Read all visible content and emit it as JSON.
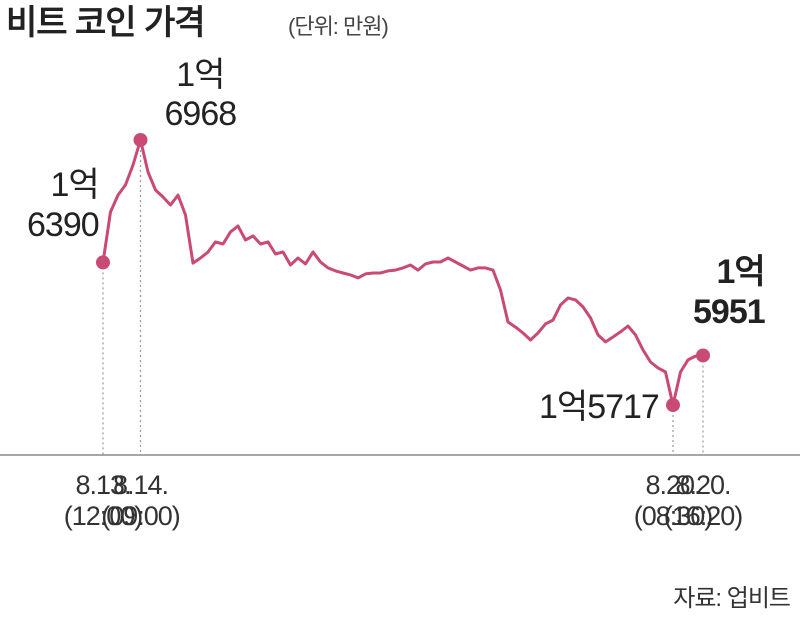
{
  "chart_data": {
    "type": "line",
    "title": "비트 코인 가격",
    "subtitle": "(단위: 만원)",
    "source": "자료: 업비트",
    "color": "#c94a73",
    "ylim": [
      15500,
      17100
    ],
    "categories": [
      "8.13.\n(12:00)",
      null,
      null,
      null,
      null,
      "8.14.\n(09:00)",
      null,
      null,
      null,
      null,
      null,
      null,
      null,
      null,
      null,
      null,
      null,
      null,
      null,
      null,
      null,
      null,
      null,
      null,
      null,
      null,
      null,
      null,
      null,
      null,
      null,
      null,
      null,
      null,
      null,
      null,
      null,
      null,
      null,
      null,
      null,
      null,
      null,
      null,
      null,
      null,
      null,
      null,
      null,
      null,
      null,
      null,
      null,
      null,
      null,
      null,
      null,
      null,
      null,
      null,
      null,
      null,
      null,
      null,
      null,
      null,
      null,
      null,
      null,
      null,
      null,
      null,
      null,
      null,
      null,
      null,
      "8.20.\n(08:30)",
      null,
      null,
      null,
      "8.20.\n(16:20)"
    ],
    "values": [
      16390,
      16628,
      16708,
      16756,
      16850,
      16968,
      16817,
      16732,
      16699,
      16661,
      16708,
      16614,
      16387,
      16411,
      16439,
      16487,
      16477,
      16534,
      16562,
      16496,
      16515,
      16477,
      16487,
      16430,
      16439,
      16378,
      16411,
      16383,
      16439,
      16392,
      16364,
      16350,
      16340,
      16331,
      16317,
      16336,
      16340,
      16340,
      16350,
      16354,
      16364,
      16378,
      16354,
      16383,
      16392,
      16392,
      16411,
      16392,
      16373,
      16354,
      16364,
      16364,
      16354,
      16260,
      16109,
      16085,
      16057,
      16024,
      16057,
      16100,
      16118,
      16189,
      16222,
      16213,
      16180,
      16128,
      16048,
      16015,
      16038,
      16062,
      16090,
      16048,
      15977,
      15920,
      15892,
      15873,
      15717,
      15873,
      15930,
      15948,
      15951
    ],
    "value_labels": [
      "1억\n6390",
      null,
      null,
      null,
      null,
      "1억\n6968",
      null,
      null,
      null,
      null,
      null,
      null,
      null,
      null,
      null,
      null,
      null,
      null,
      null,
      null,
      null,
      null,
      null,
      null,
      null,
      null,
      null,
      null,
      null,
      null,
      null,
      null,
      null,
      null,
      null,
      null,
      null,
      null,
      null,
      null,
      null,
      null,
      null,
      null,
      null,
      null,
      null,
      null,
      null,
      null,
      null,
      null,
      null,
      null,
      null,
      null,
      null,
      null,
      null,
      null,
      null,
      null,
      null,
      null,
      null,
      null,
      null,
      null,
      null,
      null,
      null,
      null,
      null,
      null,
      null,
      null,
      "1억5717",
      null,
      null,
      null,
      "1억\n5951"
    ]
  }
}
